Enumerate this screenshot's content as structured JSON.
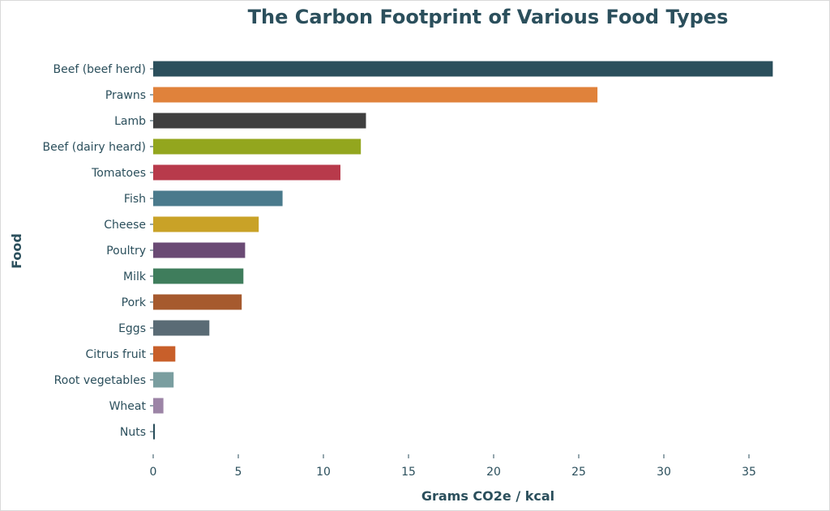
{
  "chart_data": {
    "type": "bar",
    "orientation": "horizontal",
    "title": "The Carbon Footprint of Various Food Types",
    "xlabel": "Grams CO2e / kcal",
    "ylabel": "Food",
    "xlim": [
      0,
      37
    ],
    "xticks": [
      "0",
      "5",
      "10",
      "15",
      "20",
      "25",
      "30",
      "35"
    ],
    "grid": false,
    "categories": [
      "Beef (beef herd)",
      "Prawns",
      "Lamb",
      "Beef (dairy heard)",
      "Tomatoes",
      "Fish",
      "Cheese",
      "Poultry",
      "Milk",
      "Pork",
      "Eggs",
      "Citrus fruit",
      "Root vegetables",
      "Wheat",
      "Nuts"
    ],
    "values": [
      36.4,
      26.1,
      12.5,
      12.2,
      11.0,
      7.6,
      6.2,
      5.4,
      5.3,
      5.2,
      3.3,
      1.3,
      1.2,
      0.6,
      0.1
    ],
    "colors": [
      "#2b4f5c",
      "#e0823b",
      "#3f3f3f",
      "#93a61e",
      "#b83a4b",
      "#4a7a8c",
      "#c9a227",
      "#6a4a74",
      "#3f7d5c",
      "#a65a2e",
      "#5a6b75",
      "#c85f2a",
      "#7a9ea0",
      "#9c84a6",
      "#2b4f5c"
    ],
    "text_color": "#2b4f5c"
  }
}
